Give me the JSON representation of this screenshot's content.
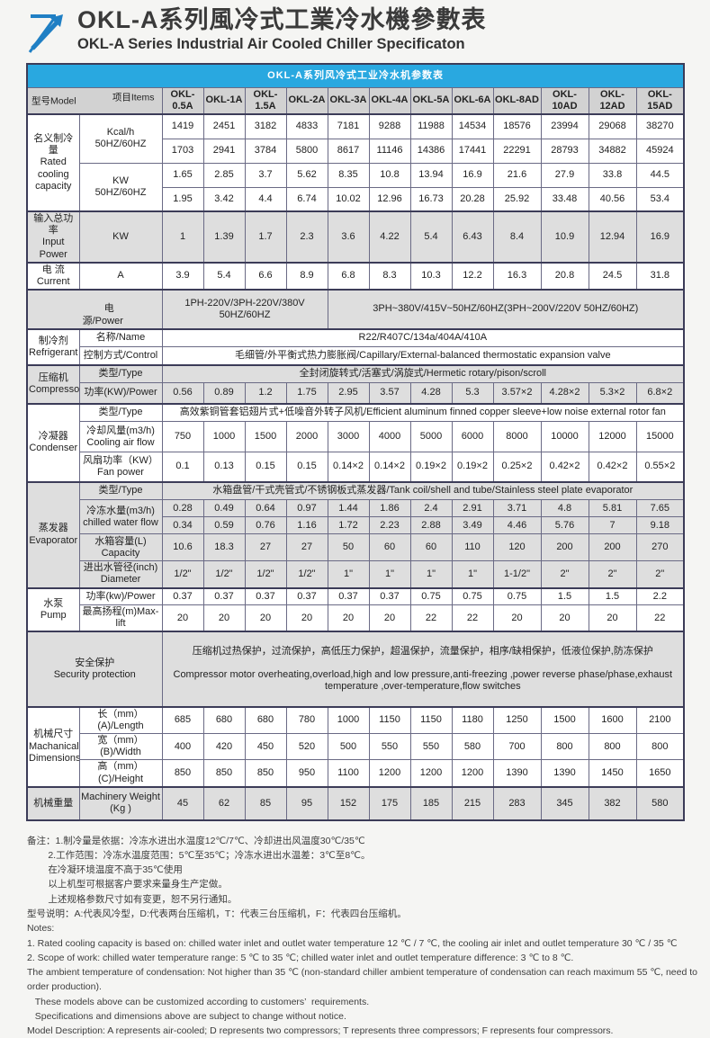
{
  "page": {
    "title_cn": "OKL-A系列風冷式工業冷水機參數表",
    "title_en": "OKL-A Series Industrial Air Cooled Chiller Specificaton"
  },
  "colors": {
    "accent_blue": "#29a8e0",
    "logo_blue": "#1f7fc4",
    "row_shade": "#dedede",
    "border": "#3c3c58"
  },
  "table": {
    "title": "OKL-A系列风冷式工业冷水机参数表",
    "corner_model": "型号Model",
    "corner_items": "项目Items",
    "models": [
      "OKL-0.5A",
      "OKL-1A",
      "OKL-1.5A",
      "OKL-2A",
      "OKL-3A",
      "OKL-4A",
      "OKL-5A",
      "OKL-6A",
      "OKL-8AD",
      "OKL-10AD",
      "OKL-12AD",
      "OKL-15AD"
    ],
    "labels": {
      "capacity": "名义制冷量\nRated\ncooling\ncapacity",
      "kcal_unit": "Kcal/h\n50HZ/60HZ",
      "kw_unit": "KW\n50HZ/60HZ",
      "input_power": "输入总功率\nInput Power",
      "input_unit": "KW",
      "current": "电 流\nCurrent",
      "current_unit": "A",
      "power_1": "电",
      "power_2": "源/Power",
      "refrigerant": "制冷剂\nRefrigerant",
      "ref_name": "名称/Name",
      "ref_control": "控制方式/Control",
      "compressor": "压缩机\nCompressor",
      "type": "类型/Type",
      "comp_power": "功率(KW)/Power",
      "condenser": "冷凝器\nCondenser",
      "air_flow": "冷却风量(m3/h)\nCooling air flow",
      "fan_power": "风扇功率（KW）\nFan power",
      "evaporator": "蒸发器\nEvaporator",
      "chilled_water": "冷冻水量(m3/h)\nchilled water flow",
      "tank_capacity": "水箱容量(L)\nCapacity",
      "diameter": "进出水管径(inch)\nDiameter",
      "pump": "水泵\nPump",
      "pump_power": "功率(kw)/Power",
      "max_lift": "最高扬程(m)Max-lift",
      "security": "安全保护\nSecurity protection",
      "dimensions": "机械尺寸\nMachanical\nDimensions",
      "length": "长（mm）(A)/Length",
      "width": "宽（mm）(B)/Width",
      "height": "高（mm）(C)/Height",
      "weight_cn": "机械重量",
      "weight_en": "Machinery Weight\n(Kg )"
    },
    "spans": {
      "power_1ph": "1PH-220V/3PH-220V/380V 50HZ/60HZ",
      "power_3ph": "3PH~380V/415V~50HZ/60HZ(3PH~200V/220V  50HZ/60HZ)",
      "ref_name_val": "R22/R407C/134a/404A/410A",
      "ref_control_val": "毛细管/外平衡式热力膨胀阀/Capillary/External-balanced thermostatic expansion valve",
      "comp_type_val": "全封闭旋转式/活塞式/涡旋式/Hermetic rotary/pison/scroll",
      "cond_type_val": "高效紫铜管套铝翅片式+低噪音外转子风机/Efficient aluminum finned copper sleeve+low noise external rotor fan",
      "evap_type_val": "水箱盘管/干式壳管式/不锈钢板式蒸发器/Tank coil/shell and tube/Stainless steel plate evaporator",
      "security_cn": "压缩机过热保护，过流保护，高低压力保护，超温保护，流量保护，相序/缺相保护，低液位保护,防冻保护",
      "security_en": "Compressor motor overheating,overload,high and low pressure,anti-freezing ,power reverse phase/phase,exhaust temperature ,over-temperature,flow switches"
    },
    "values": {
      "kcal_50": [
        "1419",
        "2451",
        "3182",
        "4833",
        "7181",
        "9288",
        "11988",
        "14534",
        "18576",
        "23994",
        "29068",
        "38270"
      ],
      "kcal_60": [
        "1703",
        "2941",
        "3784",
        "5800",
        "8617",
        "11146",
        "14386",
        "17441",
        "22291",
        "28793",
        "34882",
        "45924"
      ],
      "kw_50": [
        "1.65",
        "2.85",
        "3.7",
        "5.62",
        "8.35",
        "10.8",
        "13.94",
        "16.9",
        "21.6",
        "27.9",
        "33.8",
        "44.5"
      ],
      "kw_60": [
        "1.95",
        "3.42",
        "4.4",
        "6.74",
        "10.02",
        "12.96",
        "16.73",
        "20.28",
        "25.92",
        "33.48",
        "40.56",
        "53.4"
      ],
      "input_kw": [
        "1",
        "1.39",
        "1.7",
        "2.3",
        "3.6",
        "4.22",
        "5.4",
        "6.43",
        "8.4",
        "10.9",
        "12.94",
        "16.9"
      ],
      "current_a": [
        "3.9",
        "5.4",
        "6.6",
        "8.9",
        "6.8",
        "8.3",
        "10.3",
        "12.2",
        "16.3",
        "20.8",
        "24.5",
        "31.8"
      ],
      "comp_power": [
        "0.56",
        "0.89",
        "1.2",
        "1.75",
        "2.95",
        "3.57",
        "4.28",
        "5.3",
        "3.57×2",
        "4.28×2",
        "5.3×2",
        "6.8×2"
      ],
      "air_flow": [
        "750",
        "1000",
        "1500",
        "2000",
        "3000",
        "4000",
        "5000",
        "6000",
        "8000",
        "10000",
        "12000",
        "15000"
      ],
      "fan_power": [
        "0.1",
        "0.13",
        "0.15",
        "0.15",
        "0.14×2",
        "0.14×2",
        "0.19×2",
        "0.19×2",
        "0.25×2",
        "0.42×2",
        "0.42×2",
        "0.55×2"
      ],
      "chw_50": [
        "0.28",
        "0.49",
        "0.64",
        "0.97",
        "1.44",
        "1.86",
        "2.4",
        "2.91",
        "3.71",
        "4.8",
        "5.81",
        "7.65"
      ],
      "chw_60": [
        "0.34",
        "0.59",
        "0.76",
        "1.16",
        "1.72",
        "2.23",
        "2.88",
        "3.49",
        "4.46",
        "5.76",
        "7",
        "9.18"
      ],
      "tank": [
        "10.6",
        "18.3",
        "27",
        "27",
        "50",
        "60",
        "60",
        "110",
        "120",
        "200",
        "200",
        "270"
      ],
      "diameter": [
        "1/2\"",
        "1/2\"",
        "1/2\"",
        "1/2\"",
        "1\"",
        "1\"",
        "1\"",
        "1\"",
        "1-1/2\"",
        "2\"",
        "2\"",
        "2\""
      ],
      "pump_power": [
        "0.37",
        "0.37",
        "0.37",
        "0.37",
        "0.37",
        "0.37",
        "0.75",
        "0.75",
        "0.75",
        "1.5",
        "1.5",
        "2.2"
      ],
      "max_lift": [
        "20",
        "20",
        "20",
        "20",
        "20",
        "20",
        "22",
        "22",
        "20",
        "20",
        "20",
        "22"
      ],
      "length": [
        "685",
        "680",
        "680",
        "780",
        "1000",
        "1150",
        "1150",
        "1180",
        "1250",
        "1500",
        "1600",
        "2100"
      ],
      "width": [
        "400",
        "420",
        "450",
        "520",
        "500",
        "550",
        "550",
        "580",
        "700",
        "800",
        "800",
        "800"
      ],
      "height": [
        "850",
        "850",
        "850",
        "950",
        "1100",
        "1200",
        "1200",
        "1200",
        "1390",
        "1390",
        "1450",
        "1650"
      ],
      "weight": [
        "45",
        "62",
        "85",
        "95",
        "152",
        "175",
        "185",
        "215",
        "283",
        "345",
        "382",
        "580"
      ]
    }
  },
  "notes": {
    "cn_lines": [
      "备注：1.制冷量是依据：冷冻水进出水温度12℃/7℃、冷却进出风温度30℃/35℃",
      "        2.工作范围：冷冻水温度范围：5℃至35℃；冷冻水进出水温差：3℃至8℃。",
      "        在冷凝环境温度不高于35℃使用",
      "        以上机型可根据客户要求来量身生产定做。",
      "        上述规格参数尺寸如有变更，恕不另行通知。",
      "型号说明：A:代表风冷型，D:代表两台压缩机，T：代表三台压缩机，F：代表四台压缩机。"
    ],
    "en_lines": [
      "Notes:",
      "1. Rated cooling capacity is based on: chilled water inlet and outlet water temperature 12 ℃ / 7 ℃, the cooling air inlet and outlet temperature 30 ℃ / 35 ℃",
      "2. Scope of work: chilled water temperature range: 5 ℃ to 35 ℃; chilled water inlet and outlet temperature difference: 3 ℃ to 8 ℃.",
      "The ambient temperature of condensation: Not higher than 35 ℃ (non-standard chiller ambient temperature of condensation can reach maximum 55 ℃, need to order production).",
      "   These models above can be customized according to customers’  requirements.",
      "   Specifications and dimensions above are subject to change without notice.",
      "Model Description: A represents air-cooled; D represents two compressors; T represents three compressors; F represents four compressors."
    ]
  }
}
